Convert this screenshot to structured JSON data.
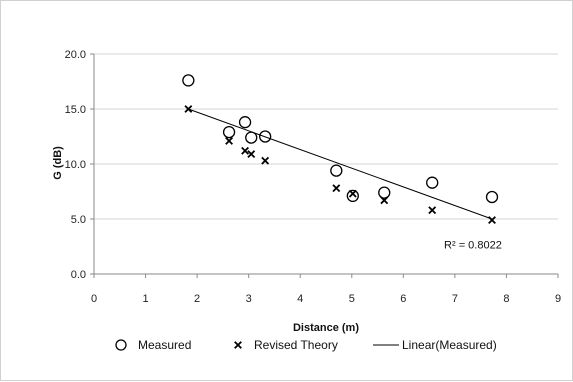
{
  "chart_data": {
    "type": "scatter",
    "xlabel": "Distance (m)",
    "ylabel": "G (dB)",
    "xlim": [
      0,
      9
    ],
    "ylim": [
      0,
      20
    ],
    "x_ticks": [
      "0",
      "1",
      "2",
      "3",
      "4",
      "5",
      "6",
      "7",
      "8",
      "9"
    ],
    "y_ticks": [
      "0.0",
      "5.0",
      "10.0",
      "15.0",
      "20.0"
    ],
    "grid": "horizontal",
    "legend_position": "bottom",
    "series": [
      {
        "name": "Measured",
        "marker": "circle",
        "points": [
          {
            "x": 1.83,
            "y": 17.6
          },
          {
            "x": 2.62,
            "y": 12.9
          },
          {
            "x": 2.93,
            "y": 13.8
          },
          {
            "x": 3.05,
            "y": 12.4
          },
          {
            "x": 3.32,
            "y": 12.5
          },
          {
            "x": 4.7,
            "y": 9.4
          },
          {
            "x": 5.02,
            "y": 7.1
          },
          {
            "x": 5.63,
            "y": 7.4
          },
          {
            "x": 6.56,
            "y": 8.3
          },
          {
            "x": 7.72,
            "y": 7.0
          }
        ]
      },
      {
        "name": "Revised Theory",
        "marker": "x",
        "points": [
          {
            "x": 1.83,
            "y": 15.0
          },
          {
            "x": 2.62,
            "y": 12.1
          },
          {
            "x": 2.93,
            "y": 11.2
          },
          {
            "x": 3.05,
            "y": 10.9
          },
          {
            "x": 3.32,
            "y": 10.3
          },
          {
            "x": 4.7,
            "y": 7.8
          },
          {
            "x": 5.02,
            "y": 7.3
          },
          {
            "x": 5.63,
            "y": 6.7
          },
          {
            "x": 6.56,
            "y": 5.8
          },
          {
            "x": 7.72,
            "y": 4.9
          }
        ]
      },
      {
        "name": "Linear(Measured)",
        "marker": "line",
        "points": [
          {
            "x": 1.83,
            "y": 15.0
          },
          {
            "x": 7.72,
            "y": 5.0
          }
        ]
      }
    ],
    "annotations": [
      {
        "text": "R² = 0.8022",
        "x": 7.35,
        "y": 2.3
      }
    ],
    "colors": {
      "marker": "#000000",
      "grid": "#d4d4d4",
      "axis": "#8a8a8a"
    }
  }
}
